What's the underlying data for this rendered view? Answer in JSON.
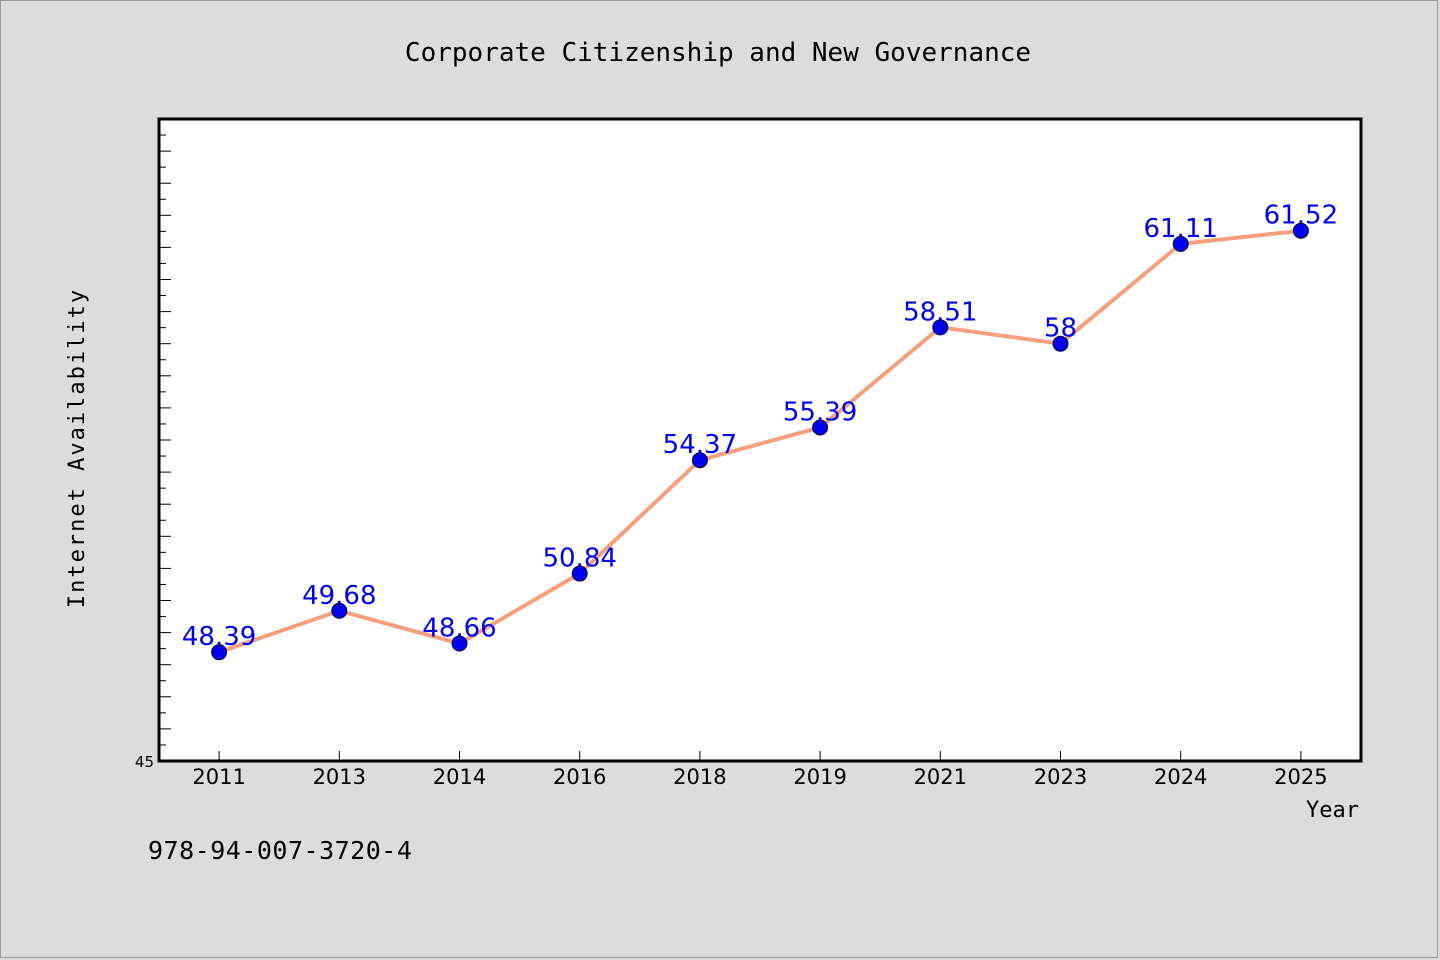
{
  "chart_data": {
    "type": "line",
    "title": "Corporate Citizenship and New Governance",
    "xlabel": "Year",
    "ylabel": "Internet Availability",
    "categories": [
      "2011",
      "2013",
      "2014",
      "2016",
      "2018",
      "2019",
      "2021",
      "2023",
      "2024",
      "2025"
    ],
    "series": [
      {
        "values": [
          48.39,
          49.68,
          48.66,
          50.84,
          54.37,
          55.39,
          58.51,
          58,
          61.11,
          61.52
        ],
        "labels": [
          "48.39",
          "49.68",
          "48.66",
          "50.84",
          "54.37",
          "55.39",
          "58.51",
          "58",
          "61.11",
          "61.52"
        ]
      }
    ],
    "ylim": [
      45,
      65
    ],
    "y_tick_labels": [
      "45"
    ],
    "grid": false,
    "colors": {
      "line": "#f4a07e",
      "marker": "#0000ee",
      "label": "#0000ee",
      "background": "#dcdcdc",
      "plot_bg": "#ffffff"
    }
  },
  "footer": {
    "isbn": "978-94-007-3720-4"
  }
}
